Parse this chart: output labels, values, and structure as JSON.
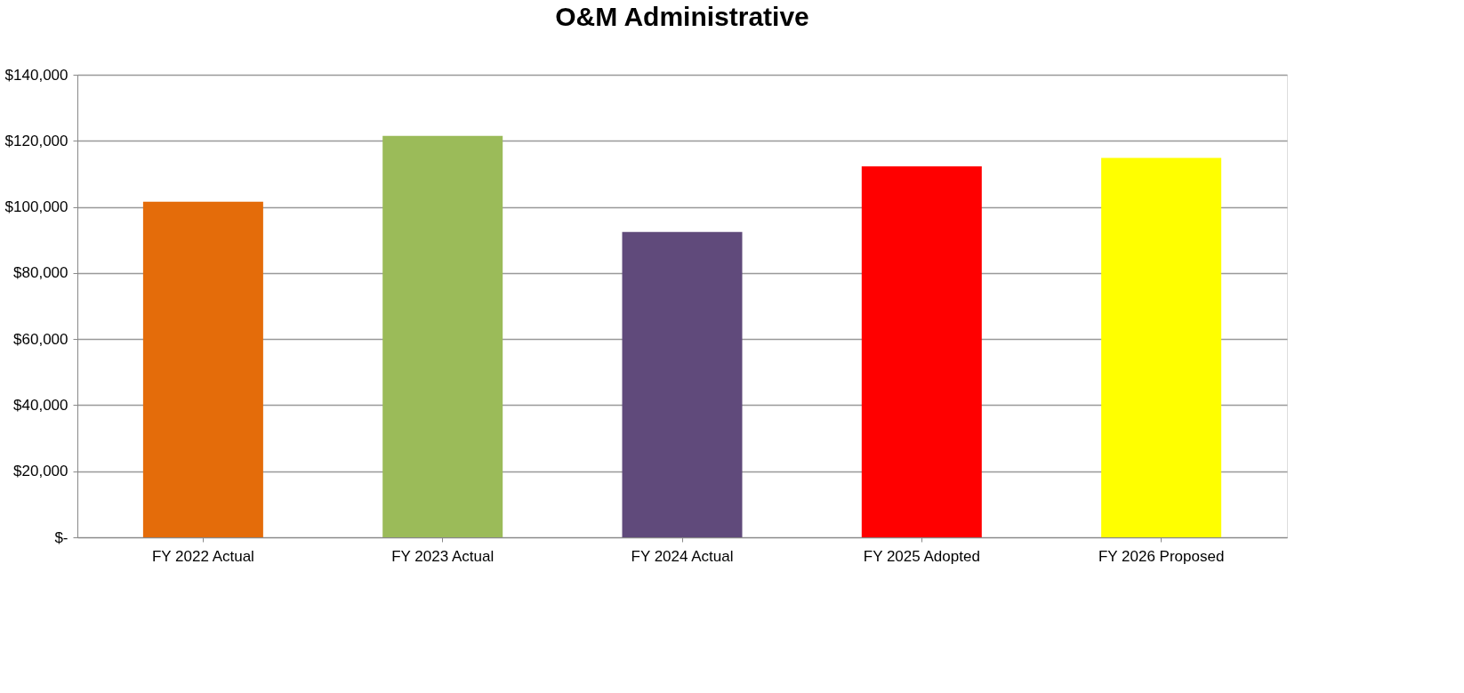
{
  "chart_data": {
    "type": "bar",
    "title": "O&M Administrative",
    "categories": [
      "FY 2022 Actual",
      "FY 2023 Actual",
      "FY 2024 Actual",
      "FY 2025 Adopted",
      "FY 2026 Proposed"
    ],
    "values": [
      101600,
      121500,
      92400,
      112300,
      114800
    ],
    "colors": [
      "#e46c0a",
      "#9bbb59",
      "#604a7b",
      "#ff0000",
      "#ffff00"
    ],
    "ylim": [
      0,
      140000
    ],
    "yticks": [
      {
        "value": 0,
        "label": "$-"
      },
      {
        "value": 20000,
        "label": "$20,000"
      },
      {
        "value": 40000,
        "label": "$40,000"
      },
      {
        "value": 60000,
        "label": "$60,000"
      },
      {
        "value": 80000,
        "label": "$80,000"
      },
      {
        "value": 100000,
        "label": "$100,000"
      },
      {
        "value": 120000,
        "label": "$120,000"
      },
      {
        "value": 140000,
        "label": "$140,000"
      }
    ],
    "grid": "y"
  }
}
